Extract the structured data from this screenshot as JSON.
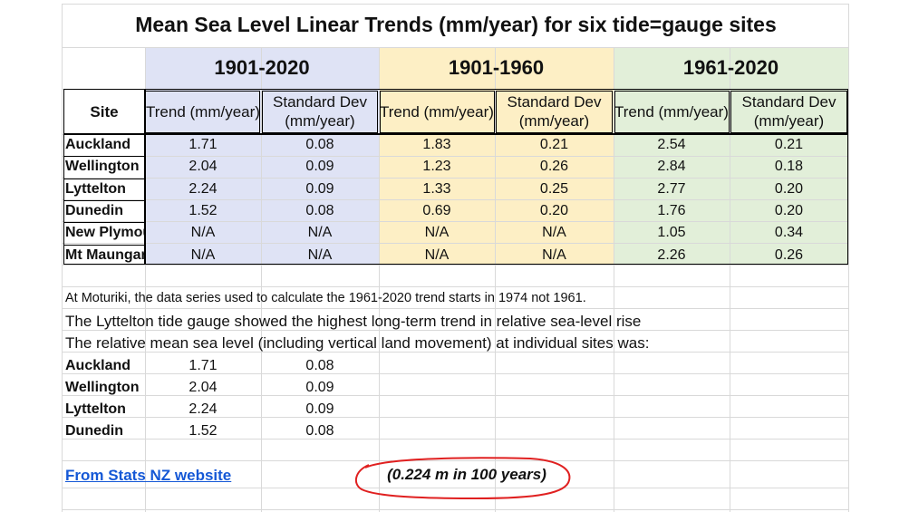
{
  "title": "Mean Sea Level Linear Trends (mm/year) for six tide=gauge sites",
  "periods": [
    "1901-2020",
    "1901-1960",
    "1961-2020"
  ],
  "period_colors": {
    "1901-2020": "#dfe3f5",
    "1901-1960": "#fdefc5",
    "1961-2020": "#e2efd9"
  },
  "headers": {
    "site": "Site",
    "trend": "Trend (mm/year)",
    "sd_line1": "Standard Dev",
    "sd_line2": "(mm/year)"
  },
  "rows": [
    {
      "site": "Auckland",
      "values": [
        "1.71",
        "0.08",
        "1.83",
        "0.21",
        "2.54",
        "0.21"
      ]
    },
    {
      "site": "Wellington",
      "values": [
        "2.04",
        "0.09",
        "1.23",
        "0.26",
        "2.84",
        "0.18"
      ]
    },
    {
      "site": "Lyttelton",
      "values": [
        "2.24",
        "0.09",
        "1.33",
        "0.25",
        "2.77",
        "0.20"
      ]
    },
    {
      "site": "Dunedin",
      "values": [
        "1.52",
        "0.08",
        "0.69",
        "0.20",
        "1.76",
        "0.20"
      ]
    },
    {
      "site": "New Plymou",
      "values": [
        "N/A",
        "N/A",
        "N/A",
        "N/A",
        "1.05",
        "0.34"
      ]
    },
    {
      "site": "Mt Maungar",
      "values": [
        "N/A",
        "N/A",
        "N/A",
        "N/A",
        "2.26",
        "0.26"
      ]
    }
  ],
  "notes": [
    "At Moturiki, the data series used to calculate the 1961-2020 trend starts in 1974 not 1961.",
    "The Lyttelton tide gauge showed the highest long-term trend in relative sea-level rise",
    "The relative mean sea level (including vertical land movement) at individual sites was:"
  ],
  "summary": [
    {
      "site": "Auckland",
      "trend": "1.71",
      "sd": "0.08"
    },
    {
      "site": "Wellington",
      "trend": "2.04",
      "sd": "0.09"
    },
    {
      "site": "Lyttelton",
      "trend": "2.24",
      "sd": "0.09"
    },
    {
      "site": "Dunedin",
      "trend": "1.52",
      "sd": "0.08"
    }
  ],
  "source_link": "From Stats NZ website",
  "annotation": "(0.224 m in 100 years)",
  "annotation_color": "#e02020"
}
